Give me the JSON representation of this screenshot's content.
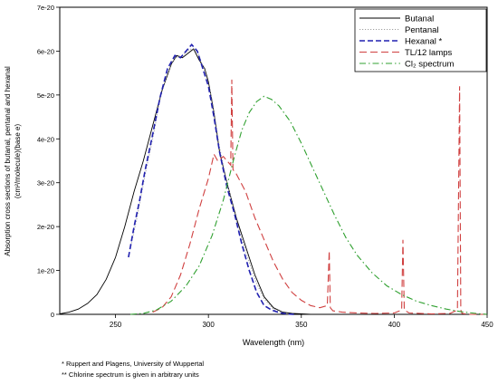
{
  "chart_data": {
    "type": "line",
    "title": "",
    "xlabel": "Wavelength (nm)",
    "ylabel_lines": [
      "Absorption cross sections of butanal, pentanal and hexanal",
      "(cm²/molecule)(base e)"
    ],
    "xlim": [
      220,
      450
    ],
    "ylim": [
      0,
      7e-20
    ],
    "x_ticks": [
      250,
      300,
      350,
      400,
      450
    ],
    "x_tick_labels": [
      "250",
      "300",
      "350",
      "400",
      "450"
    ],
    "y_ticks": [
      0,
      1e-20,
      2e-20,
      3e-20,
      4e-20,
      5e-20,
      6e-20,
      7e-20
    ],
    "y_tick_labels": [
      "0",
      "1e-20",
      "2e-20",
      "3e-20",
      "4e-20",
      "5e-20",
      "6e-20",
      "7e-20"
    ],
    "grid": false,
    "legend_position": "top-right",
    "series": [
      {
        "name": "Butanal",
        "color": "#000000",
        "style": "solid",
        "x": [
          220,
          225,
          230,
          235,
          240,
          245,
          250,
          255,
          260,
          265,
          270,
          275,
          280,
          283,
          286,
          289,
          292,
          295,
          298,
          300,
          303,
          306,
          310,
          315,
          320,
          325,
          330,
          335,
          340,
          345,
          350,
          355
        ],
        "y": [
          1e-22,
          5e-22,
          1.2e-21,
          2.5e-21,
          4.5e-21,
          8e-21,
          1.3e-20,
          2e-20,
          2.8e-20,
          3.5e-20,
          4.3e-20,
          5.1e-20,
          5.7e-20,
          5.9e-20,
          5.85e-20,
          5.95e-20,
          6.05e-20,
          5.8e-20,
          5.6e-20,
          5.3e-20,
          4.6e-20,
          3.7e-20,
          3e-20,
          2.2e-20,
          1.55e-20,
          9e-21,
          4e-21,
          1.5e-21,
          5e-22,
          2e-22,
          1e-22,
          0
        ]
      },
      {
        "name": "Pentanal",
        "color": "#a0a0a0",
        "style": "dotted",
        "x": [
          258,
          262,
          266,
          270,
          274,
          278,
          282,
          286,
          290,
          294,
          298,
          302,
          306,
          310,
          315,
          320,
          325,
          330,
          335,
          340
        ],
        "y": [
          1.5e-20,
          2.3e-20,
          3.2e-20,
          4e-20,
          4.9e-20,
          5.5e-20,
          5.85e-20,
          5.9e-20,
          6.05e-20,
          6e-20,
          5.55e-20,
          4.9e-20,
          3.8e-20,
          3e-20,
          2.15e-20,
          1.45e-20,
          8e-21,
          3.5e-21,
          1.2e-21,
          3e-22
        ]
      },
      {
        "name": "Hexanal *",
        "color": "#2020b0",
        "style": "dashed",
        "x": [
          257,
          260,
          263,
          266,
          270,
          274,
          278,
          282,
          285,
          288,
          291,
          294,
          297,
          300,
          303,
          306,
          310,
          314,
          318,
          322,
          326,
          330,
          334,
          338,
          342,
          346
        ],
        "y": [
          1.3e-20,
          2e-20,
          2.6e-20,
          3.3e-20,
          4.1e-20,
          4.95e-20,
          5.6e-20,
          5.9e-20,
          5.85e-20,
          6e-20,
          6.15e-20,
          6e-20,
          5.6e-20,
          5.2e-20,
          4.5e-20,
          3.7e-20,
          2.9e-20,
          2.3e-20,
          1.6e-20,
          1e-20,
          5e-21,
          2e-21,
          1e-21,
          4e-22,
          1e-22,
          0
        ]
      },
      {
        "name": "TL/12 lamps",
        "color": "#d04040",
        "style": "longdash",
        "x": [
          270,
          275,
          280,
          285,
          290,
          295,
          300,
          303,
          305,
          308,
          310,
          312,
          312.6,
          313.2,
          315,
          320,
          325,
          330,
          335,
          340,
          345,
          350,
          355,
          360,
          364,
          365,
          365.6,
          367,
          372,
          380,
          390,
          400,
          404,
          404.7,
          405.4,
          408,
          420,
          430,
          434,
          435.2,
          435.8,
          436.5,
          440,
          450
        ],
        "y": [
          5e-22,
          1.5e-21,
          4e-21,
          9e-21,
          1.6e-20,
          2.4e-20,
          3.1e-20,
          3.65e-20,
          3.5e-20,
          3.6e-20,
          3.5e-20,
          3.4e-20,
          5.35e-20,
          3.3e-20,
          3.2e-20,
          2.8e-20,
          2.2e-20,
          1.7e-20,
          1.2e-20,
          8e-21,
          5e-21,
          3.2e-21,
          2e-21,
          1.5e-21,
          2e-21,
          1.45e-20,
          1.5e-21,
          8e-22,
          5e-22,
          3e-22,
          2e-22,
          3e-22,
          1e-21,
          1.7e-20,
          1e-21,
          3e-22,
          1e-22,
          2e-22,
          1e-21,
          5.2e-20,
          1e-21,
          2e-22,
          0,
          0
        ]
      },
      {
        "name": "Cl₂ spectrum",
        "color": "#30a030",
        "style": "dashdot",
        "x": [
          258,
          265,
          272,
          280,
          288,
          295,
          302,
          308,
          314,
          318,
          322,
          326,
          330,
          334,
          338,
          344,
          350,
          356,
          362,
          368,
          374,
          380,
          388,
          396,
          404,
          412,
          420,
          428,
          436,
          444,
          450
        ],
        "y": [
          0,
          2e-22,
          1e-21,
          3e-21,
          6.5e-21,
          1.1e-20,
          1.8e-20,
          2.6e-20,
          3.6e-20,
          4.2e-20,
          4.6e-20,
          4.85e-20,
          4.97e-20,
          4.9e-20,
          4.75e-20,
          4.4e-20,
          3.9e-20,
          3.35e-20,
          2.8e-20,
          2.25e-20,
          1.75e-20,
          1.35e-20,
          9.5e-21,
          6.5e-21,
          4.5e-21,
          3e-21,
          2e-21,
          1.2e-21,
          6e-22,
          2e-22,
          0
        ]
      }
    ],
    "annotations": [
      "* Ruppert and Plagens, University of Wuppertal",
      "** Chlorine spectrum is given in arbitrary units"
    ]
  }
}
